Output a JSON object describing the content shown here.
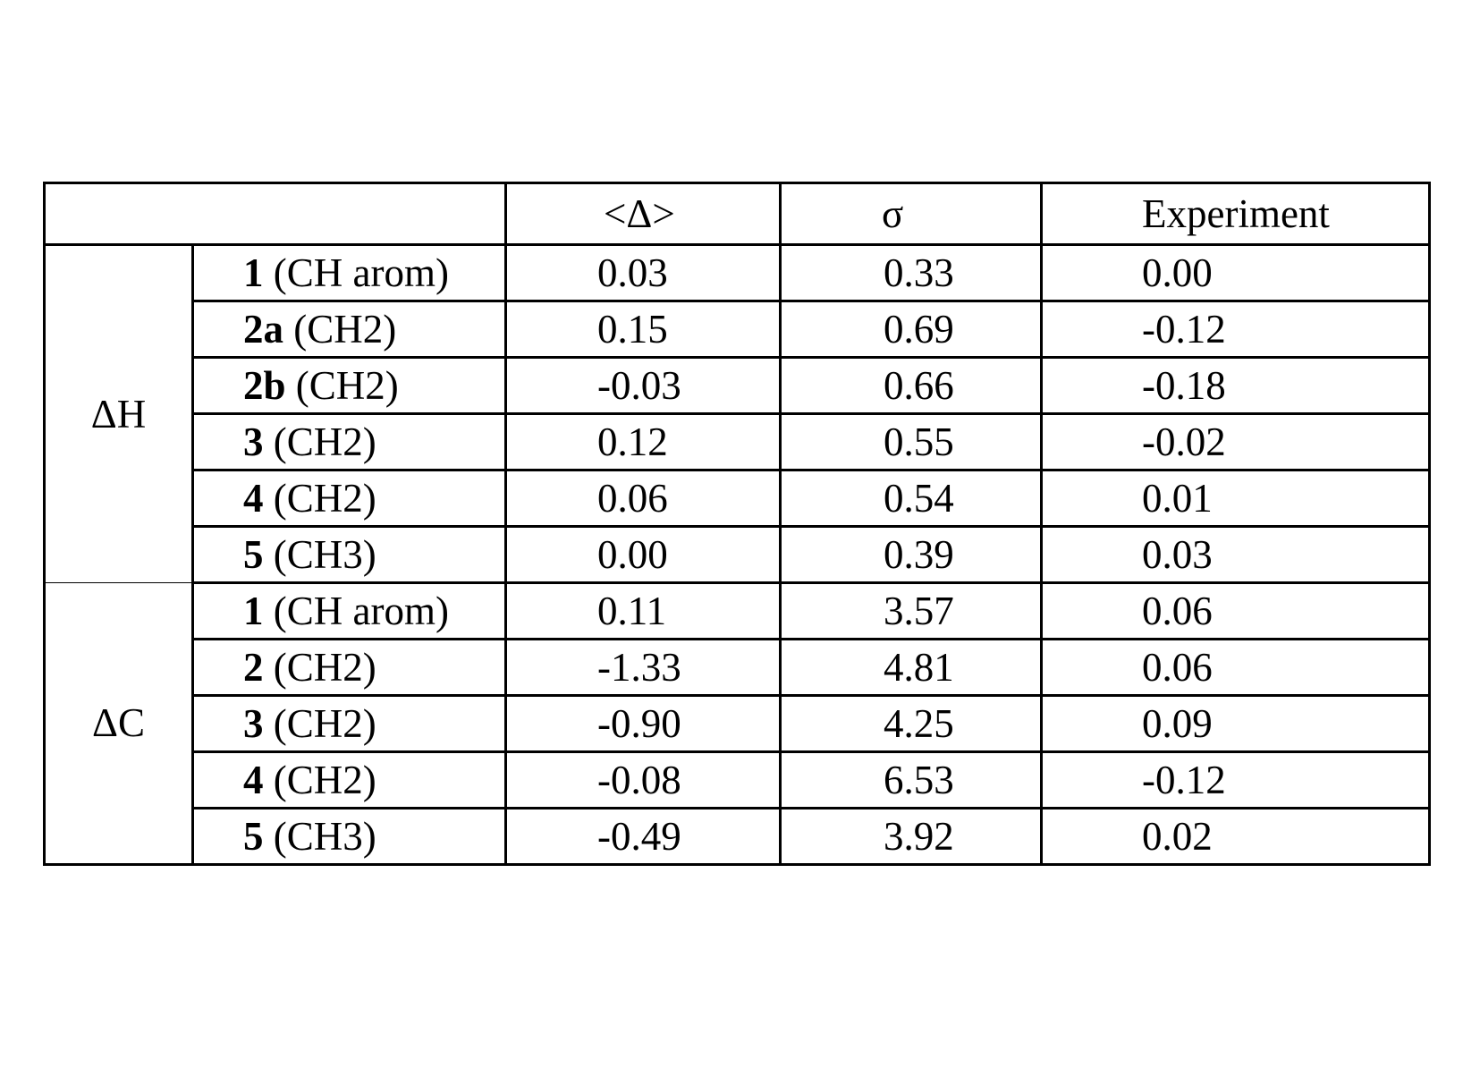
{
  "table": {
    "headers": [
      "",
      "<Δ>",
      "σ",
      "Experiment"
    ],
    "groups": [
      {
        "label": "ΔH",
        "rows": [
          {
            "id": "1",
            "group": "(CH arom)",
            "mean": "0.03",
            "sigma": "0.33",
            "experiment": "0.00"
          },
          {
            "id": "2a",
            "group": "(CH2)",
            "mean": "0.15",
            "sigma": "0.69",
            "experiment": "-0.12"
          },
          {
            "id": "2b",
            "group": "(CH2)",
            "mean": "-0.03",
            "sigma": "0.66",
            "experiment": "-0.18"
          },
          {
            "id": "3",
            "group": "(CH2)",
            "mean": "0.12",
            "sigma": "0.55",
            "experiment": "-0.02"
          },
          {
            "id": "4",
            "group": "(CH2)",
            "mean": "0.06",
            "sigma": "0.54",
            "experiment": "0.01"
          },
          {
            "id": "5",
            "group": "(CH3)",
            "mean": "0.00",
            "sigma": "0.39",
            "experiment": "0.03"
          }
        ]
      },
      {
        "label": "ΔC",
        "rows": [
          {
            "id": "1",
            "group": "(CH arom)",
            "mean": "0.11",
            "sigma": "3.57",
            "experiment": "0.06"
          },
          {
            "id": "2",
            "group": "(CH2)",
            "mean": "-1.33",
            "sigma": "4.81",
            "experiment": "0.06"
          },
          {
            "id": "3",
            "group": "(CH2)",
            "mean": "-0.90",
            "sigma": "4.25",
            "experiment": "0.09"
          },
          {
            "id": "4",
            "group": "(CH2)",
            "mean": "-0.08",
            "sigma": "6.53",
            "experiment": "-0.12"
          },
          {
            "id": "5",
            "group": "(CH3)",
            "mean": "-0.49",
            "sigma": "3.92",
            "experiment": "0.02"
          }
        ]
      }
    ]
  }
}
